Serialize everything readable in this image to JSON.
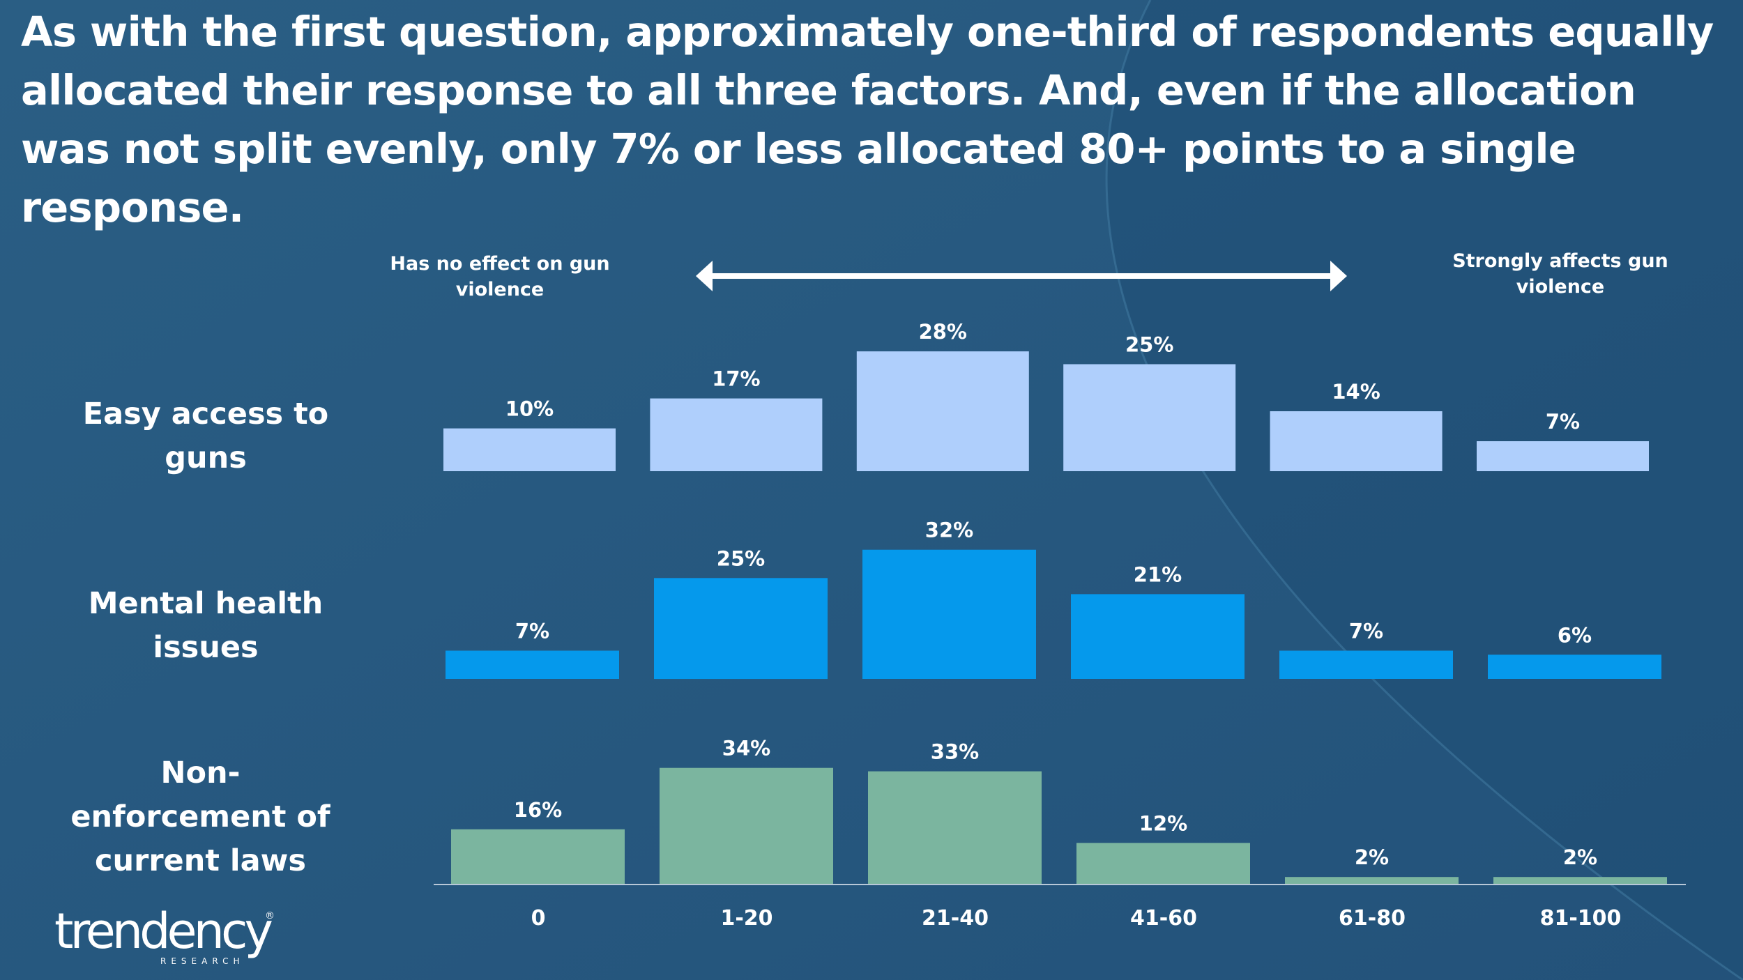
{
  "headline": "As with the first question, approximately one-third of respondents equally allocated their response to all three factors. And, even if the allocation was not split evenly, only 7% or less allocated 80+ points to a single response.",
  "scale": {
    "left_label": "Has no effect on gun violence",
    "right_label": "Strongly affects gun violence"
  },
  "logo": {
    "word": "trendency",
    "sub": "RESEARCH",
    "mark": "®"
  },
  "colors": {
    "background": "#285b80",
    "easy_access": "#afcffc",
    "mental_health": "#0599ec",
    "non_enforcement": "#7bb59f",
    "text": "#ffffff"
  },
  "chart_data": {
    "type": "bar",
    "categories": [
      "0",
      "1-20",
      "21-40",
      "41-60",
      "61-80",
      "81-100"
    ],
    "value_unit": "%",
    "series": [
      {
        "name": "Easy access to guns",
        "values": [
          10,
          17,
          28,
          25,
          14,
          7
        ]
      },
      {
        "name": "Mental health issues",
        "values": [
          7,
          25,
          32,
          21,
          7,
          6
        ]
      },
      {
        "name": "Non-enforcement of current laws",
        "values": [
          16,
          34,
          33,
          12,
          2,
          2
        ]
      }
    ]
  }
}
